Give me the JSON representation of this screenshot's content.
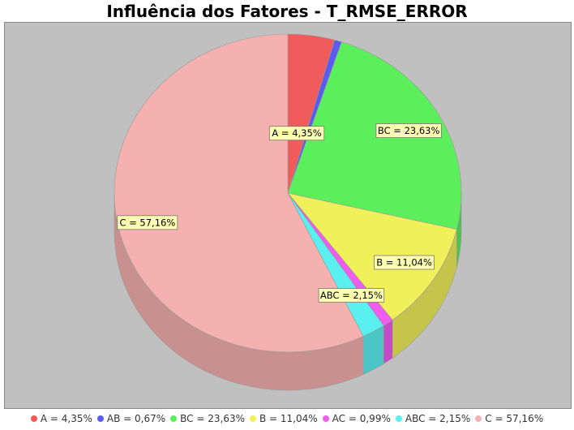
{
  "chart_data": {
    "type": "pie",
    "title": "Influência dos Fatores - T_RMSE_ERROR",
    "slices": [
      {
        "key": "A",
        "label": "A = 4,35%",
        "value": 4.35,
        "color": "#f05b5b"
      },
      {
        "key": "AB",
        "label": "AB = 0,67%",
        "value": 0.67,
        "color": "#5b5bf0"
      },
      {
        "key": "BC",
        "label": "BC = 23,63%",
        "value": 23.63,
        "color": "#5bf05b"
      },
      {
        "key": "B",
        "label": "B = 11,04%",
        "value": 11.04,
        "color": "#f0f05b"
      },
      {
        "key": "AC",
        "label": "AC = 0,99%",
        "value": 0.99,
        "color": "#f05bf0"
      },
      {
        "key": "ABC",
        "label": "ABC = 2,15%",
        "value": 2.15,
        "color": "#5bf0f0"
      },
      {
        "key": "C",
        "label": "C = 57,16%",
        "value": 57.16,
        "color": "#f5b0b0"
      }
    ],
    "labeled_slices": [
      "A",
      "BC",
      "B",
      "ABC",
      "C"
    ],
    "legend_position": "bottom",
    "style": "3d"
  }
}
